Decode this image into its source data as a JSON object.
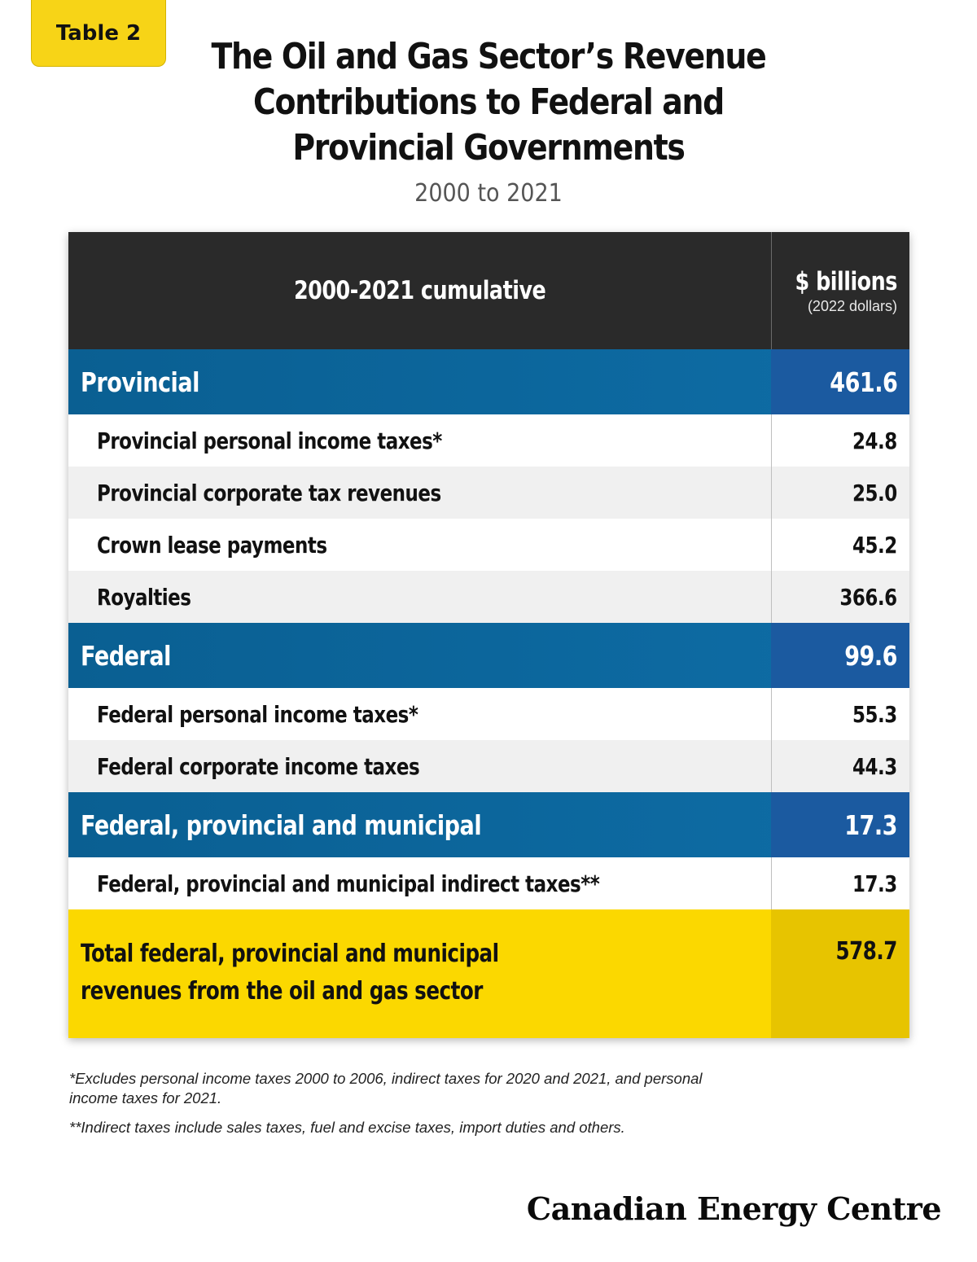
{
  "badge": "Table 2",
  "title": "The Oil and Gas Sector’s Revenue Contributions to Federal and Provincial Governments",
  "subtitle": "2000 to 2021",
  "chart_data": {
    "type": "table",
    "header": {
      "label": "2000-2021 cumulative",
      "value_label": "$ billions",
      "value_units": "(2022 dollars)"
    },
    "groups": [
      {
        "name": "Provincial",
        "value": "461.6",
        "items": [
          {
            "label": "Provincial personal income taxes*",
            "value": "24.8"
          },
          {
            "label": "Provincial corporate tax revenues",
            "value": "25.0"
          },
          {
            "label": "Crown lease payments",
            "value": "45.2"
          },
          {
            "label": "Royalties",
            "value": "366.6"
          }
        ]
      },
      {
        "name": "Federal",
        "value": "99.6",
        "items": [
          {
            "label": "Federal personal income taxes*",
            "value": "55.3"
          },
          {
            "label": "Federal corporate income taxes",
            "value": "44.3"
          }
        ]
      },
      {
        "name": "Federal, provincial and municipal",
        "value": "17.3",
        "items": [
          {
            "label": "Federal, provincial and municipal indirect taxes**",
            "value": "17.3"
          }
        ]
      }
    ],
    "total": {
      "label": "Total federal, provincial and municipal revenues from the oil and gas sector",
      "value": "578.7"
    }
  },
  "footnotes": [
    "*Excludes personal income taxes 2000 to 2006, indirect taxes for 2020 and 2021, and personal income taxes for 2021.",
    "**Indirect taxes include sales taxes, fuel and excise taxes, import duties and others."
  ],
  "brand": "Canadian Energy Centre",
  "colors": {
    "accent_yellow": "#fbd800",
    "group_blue": "#0e6da6",
    "header_dark": "#2a2a2a"
  }
}
